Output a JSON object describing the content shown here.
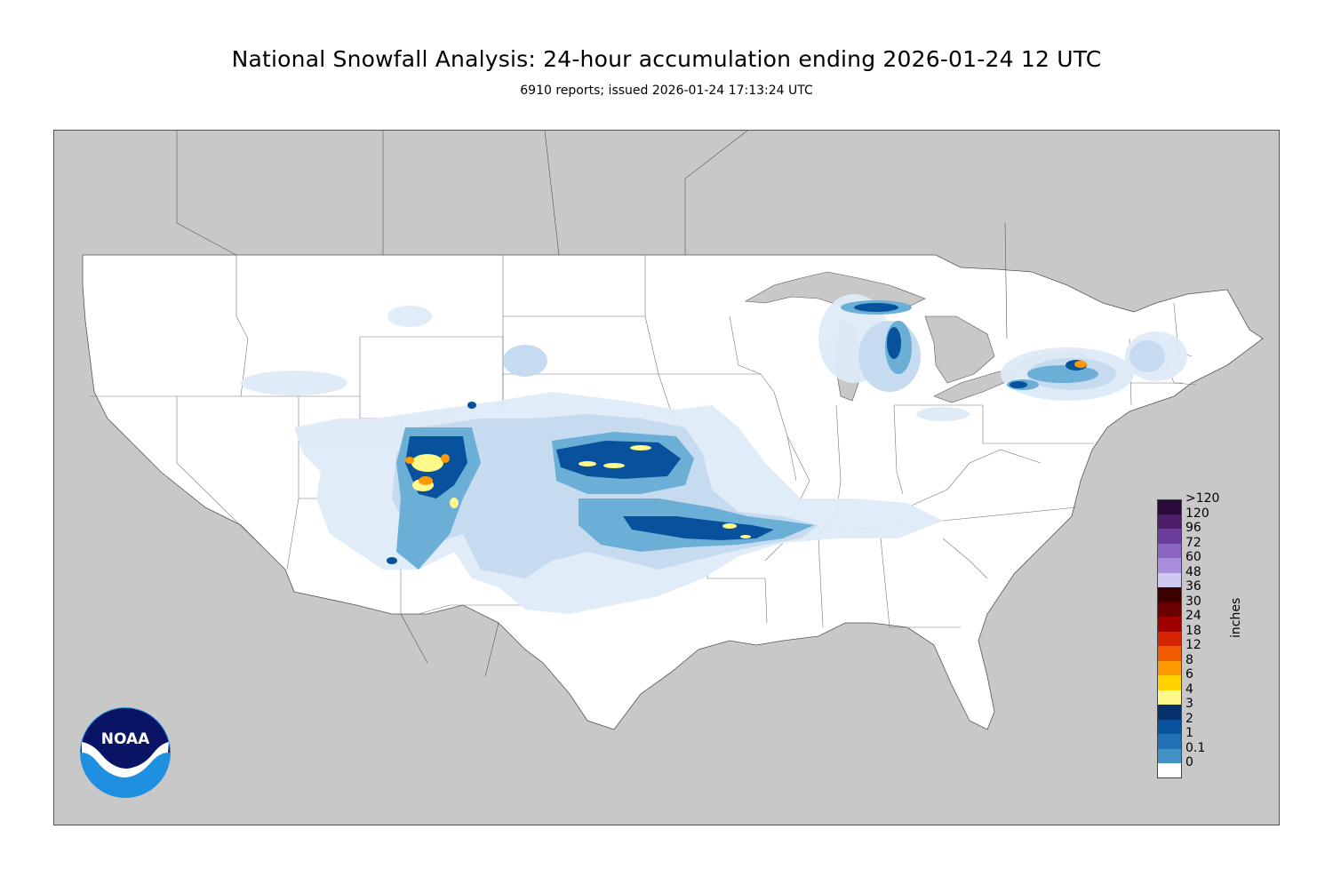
{
  "header": {
    "title": "National Snowfall Analysis: 24-hour accumulation ending 2026-01-24 12 UTC",
    "subtitle": "6910 reports; issued 2026-01-24 17:13:24 UTC"
  },
  "legend": {
    "units": "inches",
    "tick_labels": [
      ">120",
      "120",
      "96",
      "72",
      "60",
      "48",
      "36",
      "30",
      "24",
      "18",
      "12",
      "8",
      "6",
      "4",
      "3",
      "2",
      "1",
      "0.1",
      "0"
    ],
    "bins": [
      {
        "min": ">120",
        "color": "#2a0a3a"
      },
      {
        "min": "120",
        "color": "#4b1d6b"
      },
      {
        "min": "96",
        "color": "#6a3d9a"
      },
      {
        "min": "72",
        "color": "#8a66c2"
      },
      {
        "min": "60",
        "color": "#a98fdb"
      },
      {
        "min": "48",
        "color": "#cfc8f3"
      },
      {
        "min": "36",
        "color": "#3b0000"
      },
      {
        "min": "30",
        "color": "#6b0000"
      },
      {
        "min": "24",
        "color": "#a10000"
      },
      {
        "min": "18",
        "color": "#d62500"
      },
      {
        "min": "12",
        "color": "#f05a00"
      },
      {
        "min": "8",
        "color": "#ff9900"
      },
      {
        "min": "6",
        "color": "#ffd300"
      },
      {
        "min": "4",
        "color": "#fff98c"
      },
      {
        "min": "3",
        "color": "#08306b"
      },
      {
        "min": "2",
        "color": "#08519c"
      },
      {
        "min": "1",
        "color": "#2171b5"
      },
      {
        "min": "0.1",
        "color": "#4292c6"
      },
      {
        "min": "0",
        "color": "#ffffff"
      }
    ]
  },
  "logo": {
    "text": "NOAA",
    "colors": {
      "dark": "#0a1465",
      "light": "#1f8fe0"
    }
  },
  "map": {
    "land_color": "#ffffff",
    "background_color": "#c8c8c8",
    "water_color": "#c8c8c8"
  }
}
